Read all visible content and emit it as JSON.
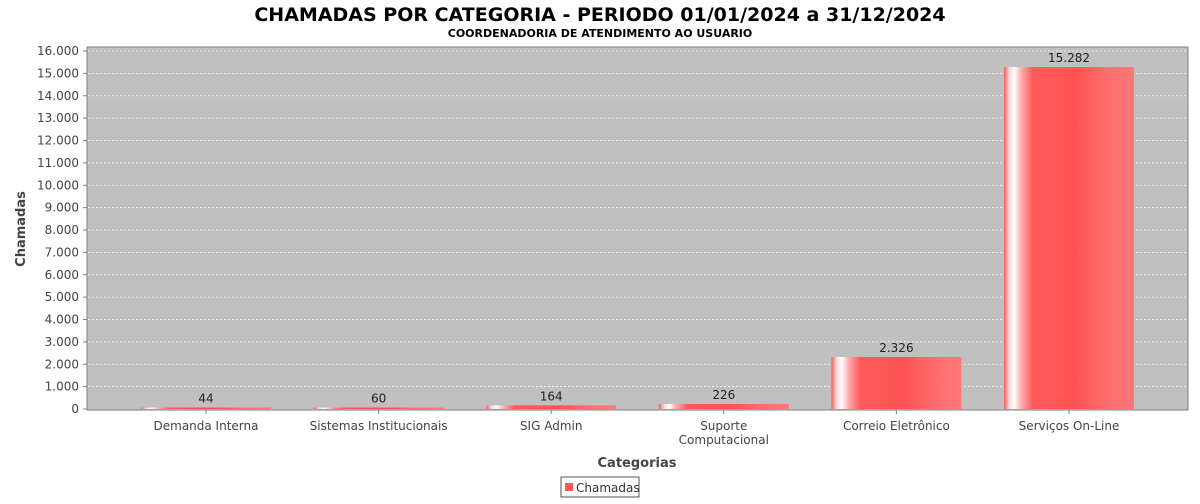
{
  "chart_data": {
    "type": "bar",
    "title": "CHAMADAS POR CATEGORIA - PERIODO 01/01/2024 a 31/12/2024",
    "subtitle": "COORDENADORIA DE ATENDIMENTO AO USUARIO",
    "xlabel": "Categorias",
    "ylabel": "Chamadas",
    "ylim": [
      0,
      16000
    ],
    "yticks": [
      0,
      1000,
      2000,
      3000,
      4000,
      5000,
      6000,
      7000,
      8000,
      9000,
      10000,
      11000,
      12000,
      13000,
      14000,
      15000,
      16000
    ],
    "ytick_labels": [
      "0",
      "1.000",
      "2.000",
      "3.000",
      "4.000",
      "5.000",
      "6.000",
      "7.000",
      "8.000",
      "9.000",
      "10.000",
      "11.000",
      "12.000",
      "13.000",
      "14.000",
      "15.000",
      "16.000"
    ],
    "categories": [
      [
        "Demanda Interna"
      ],
      [
        "Sistemas Institucionais"
      ],
      [
        "SIG Admin"
      ],
      [
        "Suporte",
        "Computacional"
      ],
      [
        "Correio Eletrônico"
      ],
      [
        "Serviços On-Line"
      ]
    ],
    "series": [
      {
        "name": "Chamadas",
        "color": "#ff5555",
        "values": [
          44,
          60,
          164,
          226,
          2326,
          15282
        ],
        "value_labels": [
          "44",
          "60",
          "164",
          "226",
          "2.326",
          "15.282"
        ]
      }
    ],
    "grid": true,
    "legend": "bottom-center",
    "plot_background": "#c0c0c0"
  }
}
